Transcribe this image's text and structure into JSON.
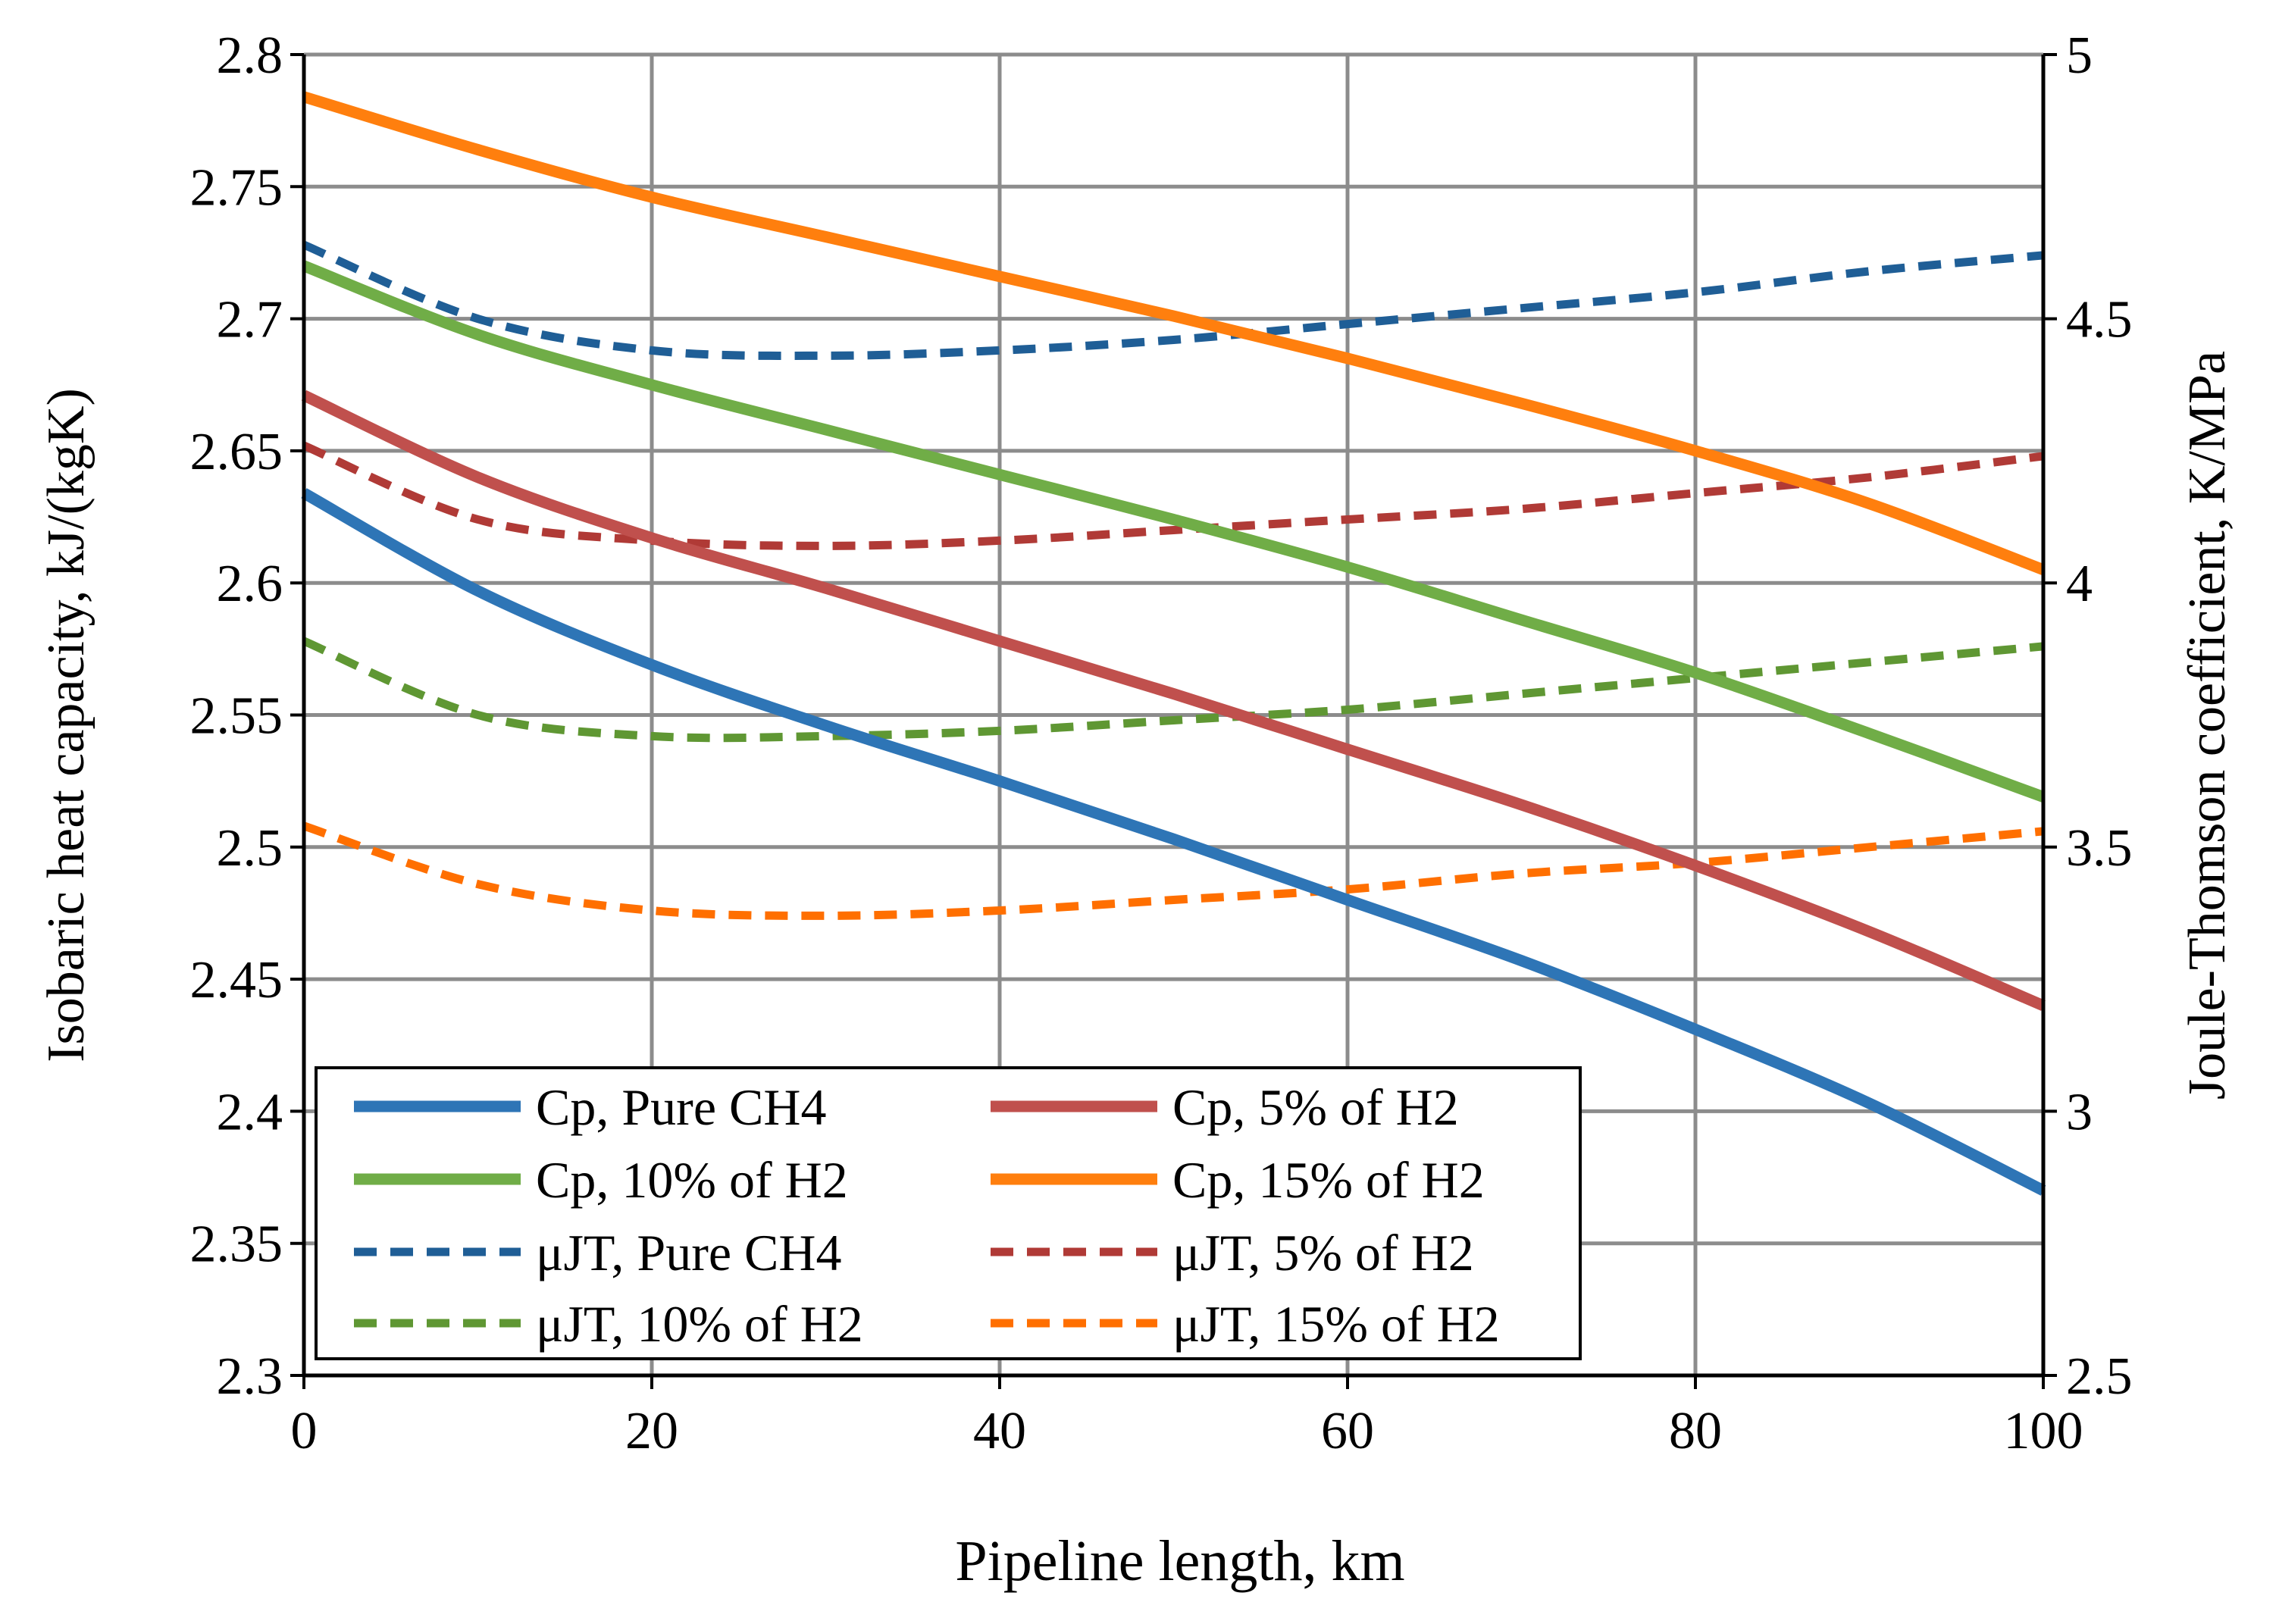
{
  "chart_data": {
    "type": "line",
    "title": "",
    "xlabel": "Pipeline length, km",
    "ylabel": "Isobaric heat capacity, kJ/(kgK)",
    "y2label": "Joule-Thomson coefficient, K/MPa",
    "xlim": [
      0,
      100
    ],
    "ylim": [
      2.3,
      2.8
    ],
    "y2lim": [
      2.5,
      5
    ],
    "grid": true,
    "legend_position": "bottom-left",
    "x_ticks": [
      "0",
      "20",
      "40",
      "60",
      "80",
      "100"
    ],
    "y_ticks": [
      "2.3",
      "2.35",
      "2.4",
      "2.45",
      "2.5",
      "2.55",
      "2.6",
      "2.65",
      "2.7",
      "2.75",
      "2.8"
    ],
    "y2_ticks": [
      "2.5",
      "3",
      "3.5",
      "4",
      "4.5",
      "5"
    ],
    "x": [
      0,
      10,
      20,
      30,
      40,
      50,
      60,
      70,
      80,
      90,
      100
    ],
    "series": [
      {
        "name": "Cp, Pure CH4",
        "axis": "left",
        "style": "solid",
        "color": "#2E75B6",
        "values": [
          2.634,
          2.597,
          2.569,
          2.546,
          2.525,
          2.503,
          2.48,
          2.457,
          2.431,
          2.403,
          2.37
        ]
      },
      {
        "name": "Cp, 5% of H2",
        "axis": "right",
        "style": "solid",
        "color": "#C0504D",
        "note": "values on left axis scale",
        "values": [
          2.671,
          2.64,
          2.617,
          2.598,
          2.578,
          2.558,
          2.537,
          2.516,
          2.493,
          2.468,
          2.44
        ]
      },
      {
        "name": "Cp, 10% of H2",
        "axis": "left",
        "style": "solid",
        "color": "#70AD47",
        "values": [
          2.72,
          2.694,
          2.675,
          2.658,
          2.641,
          2.624,
          2.606,
          2.586,
          2.566,
          2.543,
          2.519
        ]
      },
      {
        "name": "Cp, 15% of H2",
        "axis": "left",
        "style": "solid",
        "color": "#FF7F0E",
        "values": [
          2.784,
          2.764,
          2.746,
          2.731,
          2.716,
          2.701,
          2.685,
          2.668,
          2.65,
          2.63,
          2.605
        ]
      },
      {
        "name": "μJT, Pure CH4",
        "axis": "right",
        "style": "dashed",
        "color": "#1F5E96",
        "values": [
          4.64,
          4.5,
          4.44,
          4.43,
          4.44,
          4.46,
          4.49,
          4.52,
          4.55,
          4.59,
          4.62
        ]
      },
      {
        "name": "μJT, 5% of H2",
        "axis": "right",
        "style": "dashed",
        "color": "#B03A36",
        "values": [
          4.26,
          4.12,
          4.08,
          4.07,
          4.08,
          4.1,
          4.12,
          4.14,
          4.17,
          4.2,
          4.24
        ]
      },
      {
        "name": "μJT, 10% of H2",
        "axis": "right",
        "style": "dashed",
        "color": "#5F9733",
        "values": [
          3.89,
          3.75,
          3.71,
          3.71,
          3.72,
          3.74,
          3.76,
          3.79,
          3.82,
          3.85,
          3.88
        ]
      },
      {
        "name": "μJT, 15% of H2",
        "axis": "right",
        "style": "dashed",
        "color": "#FF6F00",
        "values": [
          3.54,
          3.43,
          3.38,
          3.37,
          3.38,
          3.4,
          3.42,
          3.45,
          3.47,
          3.5,
          3.53
        ]
      }
    ],
    "legend": [
      "Cp, Pure CH4",
      "Cp, 5% of H2",
      "Cp, 10% of H2",
      "Cp, 15% of H2",
      "μJT, Pure CH4",
      "μJT, 5% of H2",
      "μJT, 10% of H2",
      "μJT, 15% of H2"
    ]
  }
}
